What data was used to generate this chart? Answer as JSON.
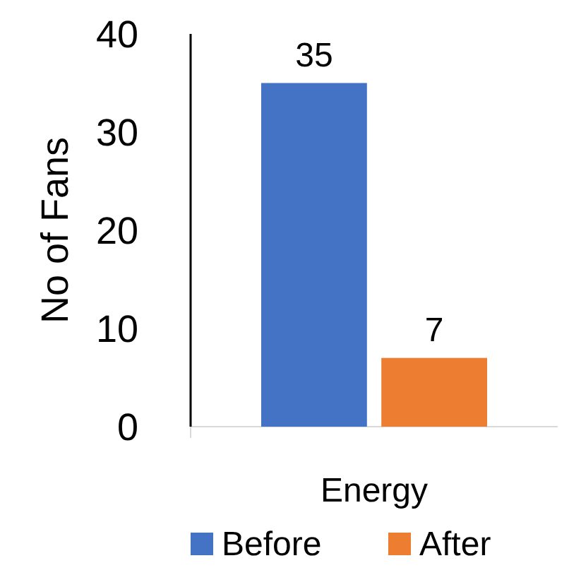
{
  "chart_data": {
    "type": "bar",
    "ylabel": "No of Fans",
    "categories": [
      "Energy"
    ],
    "series": [
      {
        "name": "Before",
        "color": "#4472c4",
        "values": [
          35
        ]
      },
      {
        "name": "After",
        "color": "#ed7d31",
        "values": [
          7
        ]
      }
    ],
    "ylim": [
      0,
      40
    ],
    "yticks": [
      0,
      10,
      20,
      30,
      40
    ],
    "data_labels": true,
    "legend": "bottom",
    "grid": false
  }
}
